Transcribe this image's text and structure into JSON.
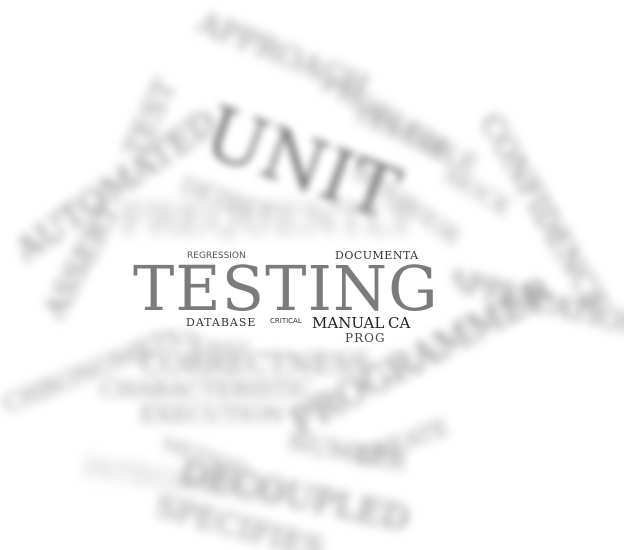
{
  "cloud": {
    "approach": "APPROACH",
    "unit": "UNIT",
    "test": "TEST",
    "automated": "AUTOMATED",
    "frequently": "FREQUENTLY",
    "assert": "ASSERT",
    "application": "APPLICATION",
    "correctness": "CORRECTNESS",
    "programmer": "PROGRAMMER",
    "characteristic": "CHARACTERISTIC",
    "execution": "EXECUTION",
    "decoupled": "DECOUPLED",
    "specifies": "SPECIFIES",
    "create": "CREATE",
    "chronometer": "CHRONOMETER",
    "integration": "INTEGRATION",
    "problem": "PROBLEM",
    "testable": "TESTABLE",
    "confidence": "CONFIDENCE",
    "mock": "MOCK",
    "detect": "DETECT",
    "number": "NUMBER",
    "behavior": "BEHAVIOR",
    "easy": "EASY",
    "method": "METHOD",
    "regression": "REGRESSION",
    "testing": "TESTING",
    "documenta": "DOCUMENTA",
    "database": "DATABASE",
    "critical": "CRITICAL",
    "manual": "MANUAL",
    "ca": "CA",
    "prog": "PROG"
  }
}
